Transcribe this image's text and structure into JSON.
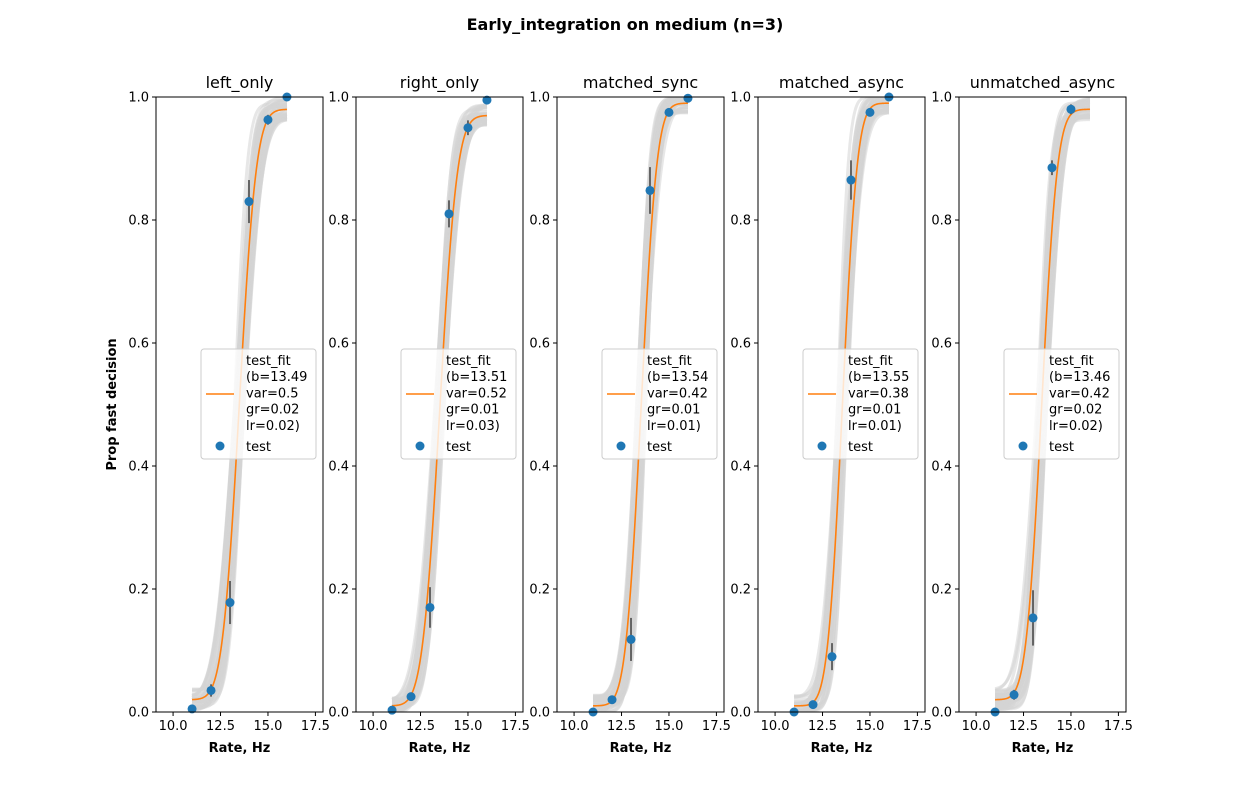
{
  "figure_title": "Early_integration on medium (n=3)",
  "colors": {
    "fit": "#ff7f0e",
    "points": "#1f77b4",
    "bootstrap": "#d3d3d3",
    "errorbar": "#404040"
  },
  "chart_data": [
    {
      "type": "scatter",
      "title": "left_only",
      "xlabel": "Rate, Hz",
      "ylabel": "Prop fast decision",
      "xlim": [
        9.1,
        17.9
      ],
      "ylim": [
        0,
        1
      ],
      "xticks": [
        10.0,
        12.5,
        15.0,
        17.5
      ],
      "xtick_labels": [
        "10.0",
        "12.5",
        "15.0",
        "17.5"
      ],
      "yticks": [
        0,
        0.2,
        0.4,
        0.6,
        0.8,
        1.0
      ],
      "ytick_labels": [
        "0.0",
        "0.2",
        "0.4",
        "0.6",
        "0.8",
        "1.0"
      ],
      "legend": {
        "location": "center right",
        "fit_label": "test_fit\n(b=13.49\nvar=0.5\ngr=0.02\nlr=0.02)",
        "points_label": "test"
      },
      "fit": {
        "b": 13.49,
        "var": 0.5,
        "gr": 0.02,
        "lr": 0.02,
        "x_range": [
          11,
          16
        ]
      },
      "series": [
        {
          "name": "test",
          "x": [
            11,
            12,
            13,
            14,
            15,
            16
          ],
          "y": [
            0.005,
            0.035,
            0.178,
            0.83,
            0.963,
            1.0
          ],
          "err": [
            0.003,
            0.01,
            0.035,
            0.035,
            0.008,
            0.002
          ]
        }
      ]
    },
    {
      "type": "scatter",
      "title": "right_only",
      "xlabel": "Rate, Hz",
      "ylabel": "",
      "xlim": [
        9.1,
        17.9
      ],
      "ylim": [
        0,
        1
      ],
      "xticks": [
        10.0,
        12.5,
        15.0,
        17.5
      ],
      "xtick_labels": [
        "10.0",
        "12.5",
        "15.0",
        "17.5"
      ],
      "yticks": [
        0,
        0.2,
        0.4,
        0.6,
        0.8,
        1.0
      ],
      "ytick_labels": [
        "0.0",
        "0.2",
        "0.4",
        "0.6",
        "0.8",
        "1.0"
      ],
      "legend": {
        "location": "center right",
        "fit_label": "test_fit\n(b=13.51\nvar=0.52\ngr=0.01\nlr=0.03)",
        "points_label": "test"
      },
      "fit": {
        "b": 13.51,
        "var": 0.52,
        "gr": 0.01,
        "lr": 0.03,
        "x_range": [
          11,
          16
        ]
      },
      "series": [
        {
          "name": "test",
          "x": [
            11,
            12,
            13,
            14,
            15,
            16
          ],
          "y": [
            0.003,
            0.025,
            0.17,
            0.81,
            0.95,
            0.995
          ],
          "err": [
            0.002,
            0.006,
            0.033,
            0.022,
            0.012,
            0.003
          ]
        }
      ]
    },
    {
      "type": "scatter",
      "title": "matched_sync",
      "xlabel": "Rate, Hz",
      "ylabel": "",
      "xlim": [
        9.1,
        17.9
      ],
      "ylim": [
        0,
        1
      ],
      "xticks": [
        10.0,
        12.5,
        15.0,
        17.5
      ],
      "xtick_labels": [
        "10.0",
        "12.5",
        "15.0",
        "17.5"
      ],
      "yticks": [
        0,
        0.2,
        0.4,
        0.6,
        0.8,
        1.0
      ],
      "ytick_labels": [
        "0.0",
        "0.2",
        "0.4",
        "0.6",
        "0.8",
        "1.0"
      ],
      "legend": {
        "location": "center right",
        "fit_label": "test_fit\n(b=13.54\nvar=0.42\ngr=0.01\nlr=0.01)",
        "points_label": "test"
      },
      "fit": {
        "b": 13.54,
        "var": 0.42,
        "gr": 0.01,
        "lr": 0.01,
        "x_range": [
          11,
          16
        ]
      },
      "series": [
        {
          "name": "test",
          "x": [
            11,
            12,
            13,
            14,
            15,
            16
          ],
          "y": [
            0.0,
            0.02,
            0.118,
            0.848,
            0.975,
            0.998
          ],
          "err": [
            0.001,
            0.005,
            0.035,
            0.038,
            0.005,
            0.002
          ]
        }
      ]
    },
    {
      "type": "scatter",
      "title": "matched_async",
      "xlabel": "Rate, Hz",
      "ylabel": "",
      "xlim": [
        9.1,
        17.9
      ],
      "ylim": [
        0,
        1
      ],
      "xticks": [
        10.0,
        12.5,
        15.0,
        17.5
      ],
      "xtick_labels": [
        "10.0",
        "12.5",
        "15.0",
        "17.5"
      ],
      "yticks": [
        0,
        0.2,
        0.4,
        0.6,
        0.8,
        1.0
      ],
      "ytick_labels": [
        "0.0",
        "0.2",
        "0.4",
        "0.6",
        "0.8",
        "1.0"
      ],
      "legend": {
        "location": "center right",
        "fit_label": "test_fit\n(b=13.55\nvar=0.38\ngr=0.01\nlr=0.01)",
        "points_label": "test"
      },
      "fit": {
        "b": 13.55,
        "var": 0.38,
        "gr": 0.01,
        "lr": 0.01,
        "x_range": [
          11,
          16
        ]
      },
      "series": [
        {
          "name": "test",
          "x": [
            11,
            12,
            13,
            14,
            15,
            16
          ],
          "y": [
            0.0,
            0.012,
            0.09,
            0.865,
            0.975,
            1.0
          ],
          "err": [
            0.001,
            0.004,
            0.022,
            0.032,
            0.004,
            0.001
          ]
        }
      ]
    },
    {
      "type": "scatter",
      "title": "unmatched_async",
      "xlabel": "Rate, Hz",
      "ylabel": "",
      "xlim": [
        9.1,
        17.9
      ],
      "ylim": [
        0,
        1
      ],
      "xticks": [
        10.0,
        12.5,
        15.0,
        17.5
      ],
      "xtick_labels": [
        "10.0",
        "12.5",
        "15.0",
        "17.5"
      ],
      "yticks": [
        0,
        0.2,
        0.4,
        0.6,
        0.8,
        1.0
      ],
      "ytick_labels": [
        "0.0",
        "0.2",
        "0.4",
        "0.6",
        "0.8",
        "1.0"
      ],
      "legend": {
        "location": "center right",
        "fit_label": "test_fit\n(b=13.46\nvar=0.42\ngr=0.02\nlr=0.02)",
        "points_label": "test"
      },
      "fit": {
        "b": 13.46,
        "var": 0.42,
        "gr": 0.02,
        "lr": 0.02,
        "x_range": [
          11,
          16
        ]
      },
      "series": [
        {
          "name": "test",
          "x": [
            11,
            12,
            13,
            14,
            15
          ],
          "y": [
            0.0,
            0.028,
            0.153,
            0.885,
            0.98
          ],
          "err": [
            0.001,
            0.008,
            0.045,
            0.012,
            0.008
          ]
        }
      ]
    }
  ]
}
